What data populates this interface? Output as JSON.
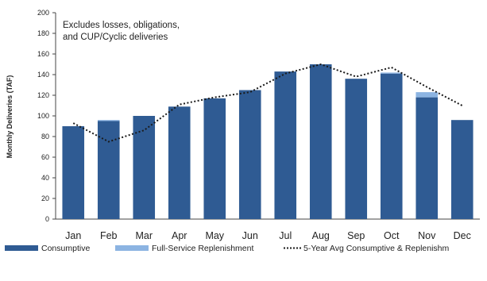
{
  "chart_data": {
    "type": "bar",
    "stacked": true,
    "ylabel": "Monthly Deliveries (TAF)",
    "ylim": [
      0,
      200
    ],
    "yticks": [
      0,
      20,
      40,
      60,
      80,
      100,
      120,
      140,
      160,
      180,
      200
    ],
    "categories": [
      "Jan",
      "Feb",
      "Mar",
      "Apr",
      "May",
      "Jun",
      "Jul",
      "Aug",
      "Sep",
      "Oct",
      "Nov",
      "Dec"
    ],
    "series": [
      {
        "name": "Consumptive",
        "type": "bar",
        "color": "#2f5b93",
        "values": [
          90,
          95,
          100,
          109,
          117,
          125,
          143,
          150,
          136,
          141,
          118,
          96
        ]
      },
      {
        "name": "Full-Service Replenishment",
        "type": "bar",
        "color": "#8cb4e2",
        "values": [
          0,
          1,
          0,
          0,
          0,
          0,
          0,
          0,
          0,
          1,
          5,
          0
        ]
      },
      {
        "name": "5-Year Avg Consumptive & Replenishm",
        "type": "line",
        "style": "dotted",
        "color": "#1a1a1a",
        "values": [
          93,
          75,
          86,
          111,
          118,
          123,
          141,
          150,
          138,
          147,
          128,
          110
        ]
      }
    ],
    "annotation": [
      "Excludes losses, obligations,",
      "and CUP/Cyclic deliveries"
    ],
    "legend_position": "bottom",
    "grid": false
  }
}
